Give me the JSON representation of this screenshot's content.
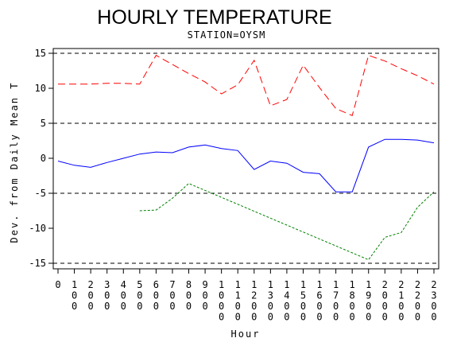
{
  "chart_data": {
    "type": "line",
    "title": "HOURLY TEMPERATURE",
    "subtitle": "STATION=OYSM",
    "xlabel": "Hour",
    "ylabel": "Dev. from Daily Mean T",
    "xlim": [
      0,
      2300
    ],
    "ylim": [
      -15,
      15
    ],
    "x_ticks": [
      0,
      100,
      200,
      300,
      400,
      500,
      600,
      700,
      800,
      900,
      1000,
      1100,
      1200,
      1300,
      1400,
      1500,
      1600,
      1700,
      1800,
      1900,
      2000,
      2100,
      2200,
      2300
    ],
    "x_tick_labels": [
      "0",
      "100",
      "200",
      "300",
      "400",
      "500",
      "600",
      "700",
      "800",
      "900",
      "1000",
      "1100",
      "1200",
      "1300",
      "1400",
      "1500",
      "1600",
      "1700",
      "1800",
      "1900",
      "2000",
      "2100",
      "2200",
      "2300"
    ],
    "y_ticks": [
      -15,
      -10,
      -5,
      0,
      5,
      10,
      15
    ],
    "y_tick_labels": [
      "-15",
      "-10",
      "-5",
      "0",
      "5",
      "10",
      "15"
    ],
    "reference_lines": [
      -15,
      -5,
      5,
      15
    ],
    "grid": false,
    "series": [
      {
        "color": "#ff0000",
        "dash": "dashed",
        "points": [
          [
            0,
            10.6
          ],
          [
            100,
            10.6
          ],
          [
            200,
            10.6
          ],
          [
            300,
            10.7
          ],
          [
            400,
            10.7
          ],
          [
            500,
            10.6
          ],
          [
            600,
            14.7
          ],
          [
            700,
            13.4
          ],
          [
            800,
            12.1
          ],
          [
            900,
            10.9
          ],
          [
            1000,
            9.2
          ],
          [
            1100,
            10.5
          ],
          [
            1200,
            14.0
          ],
          [
            1300,
            7.5
          ],
          [
            1400,
            8.4
          ],
          [
            1500,
            13.3
          ],
          [
            1600,
            10.1
          ],
          [
            1700,
            7.1
          ],
          [
            1800,
            6.1
          ],
          [
            1900,
            14.7
          ],
          [
            2000,
            13.9
          ],
          [
            2100,
            12.8
          ],
          [
            2200,
            11.8
          ],
          [
            2300,
            10.6
          ]
        ]
      },
      {
        "color": "#0000ff",
        "dash": "solid",
        "points": [
          [
            0,
            -0.4
          ],
          [
            100,
            -1.0
          ],
          [
            200,
            -1.3
          ],
          [
            300,
            -0.6
          ],
          [
            400,
            0.0
          ],
          [
            500,
            0.6
          ],
          [
            600,
            0.9
          ],
          [
            700,
            0.8
          ],
          [
            800,
            1.6
          ],
          [
            900,
            1.9
          ],
          [
            1000,
            1.4
          ],
          [
            1100,
            1.1
          ],
          [
            1200,
            -1.6
          ],
          [
            1300,
            -0.4
          ],
          [
            1400,
            -0.7
          ],
          [
            1500,
            -2.0
          ],
          [
            1600,
            -2.2
          ],
          [
            1700,
            -4.8
          ],
          [
            1800,
            -4.8
          ],
          [
            1900,
            1.6
          ],
          [
            2000,
            2.7
          ],
          [
            2100,
            2.7
          ],
          [
            2200,
            2.6
          ],
          [
            2300,
            2.2
          ]
        ]
      },
      {
        "color": "#008000",
        "dash": "dotted",
        "points": [
          [
            500,
            -7.5
          ],
          [
            600,
            -7.4
          ],
          [
            700,
            -5.7
          ],
          [
            800,
            -3.6
          ],
          [
            1900,
            -14.5
          ],
          [
            2000,
            -11.3
          ],
          [
            2100,
            -10.6
          ],
          [
            2200,
            -7.0
          ],
          [
            2300,
            -4.8
          ]
        ]
      }
    ]
  }
}
